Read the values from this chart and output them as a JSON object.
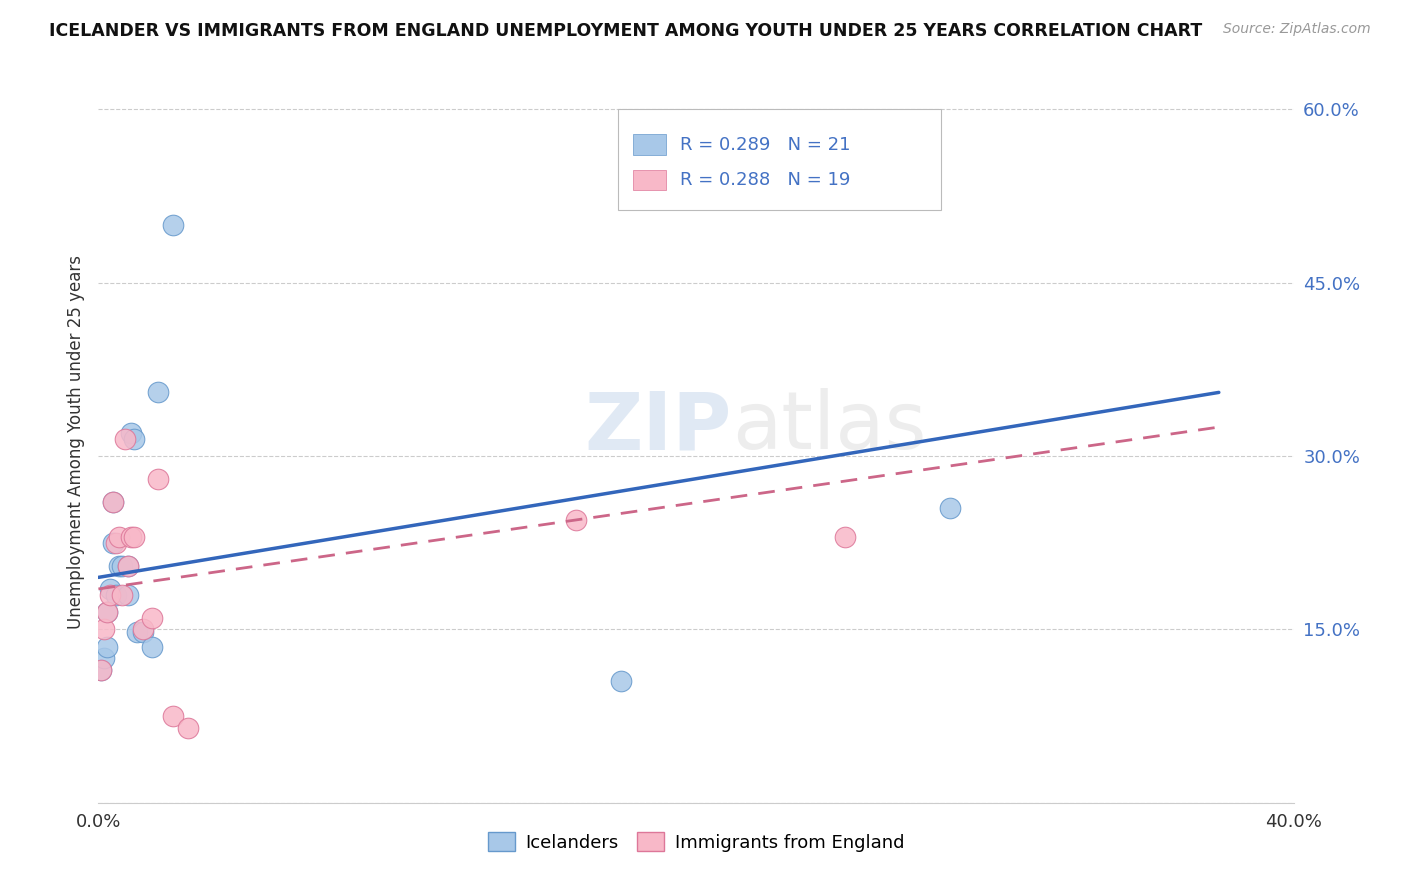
{
  "title": "ICELANDER VS IMMIGRANTS FROM ENGLAND UNEMPLOYMENT AMONG YOUTH UNDER 25 YEARS CORRELATION CHART",
  "source": "Source: ZipAtlas.com",
  "ylabel": "Unemployment Among Youth under 25 years",
  "xmin": 0.0,
  "xmax": 0.4,
  "ymin": 0.0,
  "ymax": 0.625,
  "yticks": [
    0.0,
    0.15,
    0.3,
    0.45,
    0.6
  ],
  "watermark": "ZIPatlas",
  "legend_blue_r": "0.289",
  "legend_blue_n": "21",
  "legend_pink_r": "0.288",
  "legend_pink_n": "19",
  "legend_label_blue": "Icelanders",
  "legend_label_pink": "Immigrants from England",
  "blue_scatter_color": "#a8c8e8",
  "blue_scatter_edge": "#6699cc",
  "pink_scatter_color": "#f8b8c8",
  "pink_scatter_edge": "#dd7799",
  "blue_line_color": "#3366bb",
  "pink_line_color": "#cc6688",
  "tick_color": "#4472c4",
  "grid_color": "#cccccc",
  "icelander_x": [
    0.001,
    0.002,
    0.003,
    0.003,
    0.004,
    0.005,
    0.005,
    0.006,
    0.007,
    0.008,
    0.01,
    0.01,
    0.011,
    0.012,
    0.013,
    0.015,
    0.018,
    0.02,
    0.025,
    0.285,
    0.175
  ],
  "icelander_y": [
    0.115,
    0.125,
    0.135,
    0.165,
    0.185,
    0.225,
    0.26,
    0.18,
    0.205,
    0.205,
    0.205,
    0.18,
    0.32,
    0.315,
    0.148,
    0.148,
    0.135,
    0.355,
    0.5,
    0.255,
    0.105
  ],
  "england_x": [
    0.001,
    0.002,
    0.003,
    0.004,
    0.005,
    0.006,
    0.007,
    0.008,
    0.009,
    0.01,
    0.011,
    0.012,
    0.015,
    0.018,
    0.02,
    0.025,
    0.03,
    0.25,
    0.16
  ],
  "england_y": [
    0.115,
    0.15,
    0.165,
    0.18,
    0.26,
    0.225,
    0.23,
    0.18,
    0.315,
    0.205,
    0.23,
    0.23,
    0.15,
    0.16,
    0.28,
    0.075,
    0.065,
    0.23,
    0.245
  ],
  "blue_line_x": [
    0.0,
    0.375
  ],
  "blue_line_y_start": 0.195,
  "blue_line_y_end": 0.355,
  "pink_line_x": [
    0.0,
    0.375
  ],
  "pink_line_y_start": 0.185,
  "pink_line_y_end": 0.325
}
